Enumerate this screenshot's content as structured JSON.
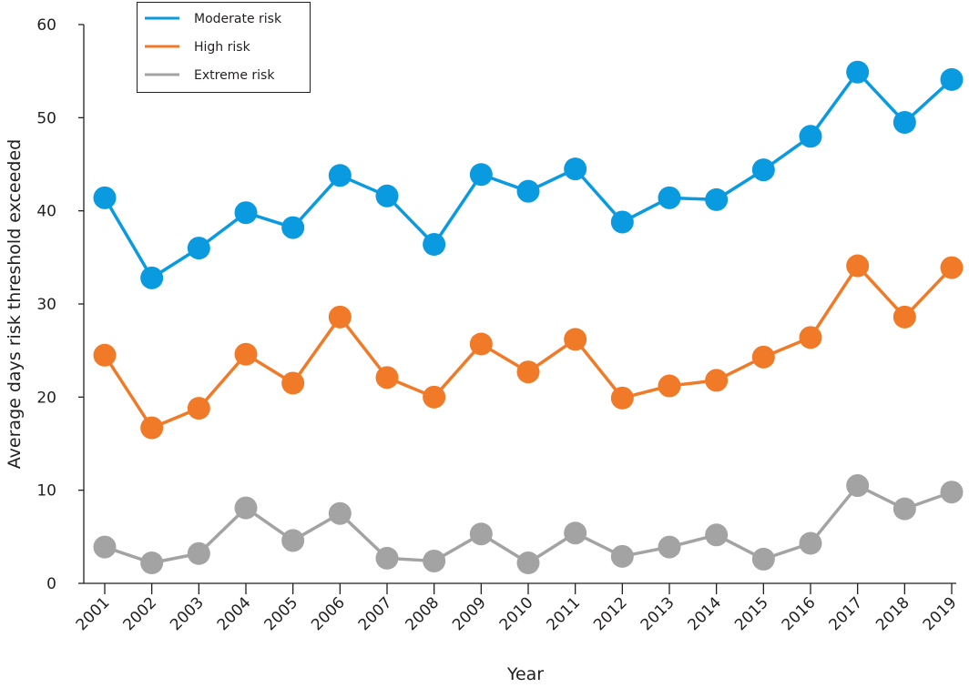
{
  "chart_data": {
    "type": "line",
    "title": "",
    "xlabel": "Year",
    "ylabel": "Average days risk threshold exceeded",
    "ylim": [
      0,
      60
    ],
    "yticks": [
      0,
      10,
      20,
      30,
      40,
      50,
      60
    ],
    "grid": false,
    "legend_position": "top-left",
    "categories": [
      "2001",
      "2002",
      "2003",
      "2004",
      "2005",
      "2006",
      "2007",
      "2008",
      "2009",
      "2010",
      "2011",
      "2012",
      "2013",
      "2014",
      "2015",
      "2016",
      "2017",
      "2018",
      "2019"
    ],
    "series": [
      {
        "name": "Moderate risk",
        "color": "#0a9ae0",
        "values": [
          41.4,
          32.8,
          36.0,
          39.8,
          38.2,
          43.8,
          41.6,
          36.4,
          43.9,
          42.1,
          44.5,
          38.8,
          41.4,
          41.2,
          44.4,
          48.0,
          54.9,
          49.5,
          54.1
        ]
      },
      {
        "name": "High risk",
        "color": "#f07a28",
        "values": [
          24.5,
          16.7,
          18.8,
          24.6,
          21.5,
          28.6,
          22.1,
          20.0,
          25.7,
          22.7,
          26.2,
          19.9,
          21.2,
          21.8,
          24.3,
          26.4,
          34.1,
          28.6,
          33.9
        ]
      },
      {
        "name": "Extreme risk",
        "color": "#a3a3a3",
        "values": [
          3.9,
          2.2,
          3.2,
          8.1,
          4.6,
          7.5,
          2.7,
          2.4,
          5.3,
          2.2,
          5.4,
          2.9,
          3.9,
          5.2,
          2.6,
          4.3,
          10.5,
          8.0,
          9.8
        ]
      }
    ]
  }
}
